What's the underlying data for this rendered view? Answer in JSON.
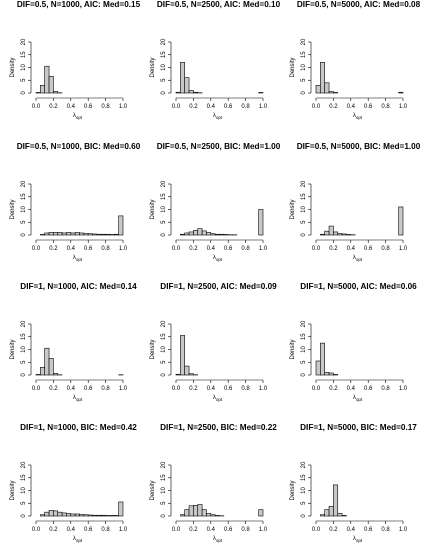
{
  "figure": {
    "ylabel": "Density",
    "xlabel_main": "λ",
    "xlabel_sub": "opt",
    "xticks": [
      "0.0",
      "0.2",
      "0.4",
      "0.6",
      "0.8",
      "1.0"
    ],
    "yticks": [
      "0",
      "5",
      "10",
      "15",
      "20"
    ]
  },
  "chart_data": [
    {
      "type": "bar",
      "title": "DIF=0.5, N=1000, AIC: Med=0.15",
      "xlabel": "λopt",
      "ylabel": "Density",
      "xlim": [
        0,
        1
      ],
      "ylim": [
        0,
        20
      ],
      "bin_width": 0.05,
      "bin_starts": [
        0.0,
        0.05,
        0.1,
        0.15,
        0.2,
        0.25,
        0.3,
        0.35,
        0.4,
        0.45,
        0.5,
        0.55,
        0.6,
        0.65,
        0.7,
        0.75,
        0.8,
        0.85,
        0.9,
        0.95
      ],
      "values": [
        0.2,
        3.0,
        10.5,
        6.5,
        0.6,
        0.1,
        0,
        0,
        0,
        0,
        0,
        0,
        0,
        0,
        0,
        0,
        0,
        0,
        0,
        0
      ]
    },
    {
      "type": "bar",
      "title": "DIF=0.5, N=2500, AIC: Med=0.10",
      "xlabel": "λopt",
      "ylabel": "Density",
      "xlim": [
        0,
        1
      ],
      "ylim": [
        0,
        20
      ],
      "bin_width": 0.05,
      "bin_starts": [
        0.0,
        0.05,
        0.1,
        0.15,
        0.2,
        0.25,
        0.3,
        0.35,
        0.4,
        0.45,
        0.5,
        0.55,
        0.6,
        0.65,
        0.7,
        0.75,
        0.8,
        0.85,
        0.9,
        0.95
      ],
      "values": [
        0.3,
        12.0,
        6.0,
        1.0,
        0.3,
        0.1,
        0,
        0,
        0,
        0,
        0,
        0,
        0,
        0,
        0,
        0,
        0,
        0,
        0,
        0.2
      ]
    },
    {
      "type": "bar",
      "title": "DIF=0.5, N=5000, AIC: Med=0.08",
      "xlabel": "λopt",
      "ylabel": "Density",
      "xlim": [
        0,
        1
      ],
      "ylim": [
        0,
        20
      ],
      "bin_width": 0.05,
      "bin_starts": [
        0.0,
        0.05,
        0.1,
        0.15,
        0.2,
        0.25,
        0.3,
        0.35,
        0.4,
        0.45,
        0.5,
        0.55,
        0.6,
        0.65,
        0.7,
        0.75,
        0.8,
        0.85,
        0.9,
        0.95
      ],
      "values": [
        3.0,
        12.0,
        4.0,
        0.6,
        0.2,
        0,
        0,
        0,
        0,
        0,
        0,
        0,
        0,
        0,
        0,
        0,
        0,
        0,
        0,
        0.3
      ]
    },
    {
      "type": "bar",
      "title": "DIF=0.5, N=1000, BIC: Med=0.60",
      "xlabel": "λopt",
      "ylabel": "Density",
      "xlim": [
        0,
        1
      ],
      "ylim": [
        0,
        20
      ],
      "bin_width": 0.05,
      "bin_starts": [
        0.0,
        0.05,
        0.1,
        0.15,
        0.2,
        0.25,
        0.3,
        0.35,
        0.4,
        0.45,
        0.5,
        0.55,
        0.6,
        0.65,
        0.7,
        0.75,
        0.8,
        0.85,
        0.9,
        0.95
      ],
      "values": [
        0,
        0.2,
        0.8,
        1.0,
        1.0,
        1.0,
        0.8,
        1.0,
        0.8,
        1.0,
        0.8,
        0.6,
        0.5,
        0.4,
        0.3,
        0.3,
        0.3,
        0.2,
        0.3,
        7.5
      ]
    },
    {
      "type": "bar",
      "title": "DIF=0.5, N=2500, BIC: Med=1.00",
      "xlabel": "λopt",
      "ylabel": "Density",
      "xlim": [
        0,
        1
      ],
      "ylim": [
        0,
        20
      ],
      "bin_width": 0.05,
      "bin_starts": [
        0.0,
        0.05,
        0.1,
        0.15,
        0.2,
        0.25,
        0.3,
        0.35,
        0.4,
        0.45,
        0.5,
        0.55,
        0.6,
        0.65,
        0.7,
        0.75,
        0.8,
        0.85,
        0.9,
        0.95
      ],
      "values": [
        0,
        0.3,
        0.8,
        1.2,
        1.8,
        2.5,
        1.6,
        1.0,
        0.5,
        0.3,
        0.3,
        0.2,
        0.1,
        0.1,
        0,
        0,
        0,
        0,
        0,
        10.0
      ]
    },
    {
      "type": "bar",
      "title": "DIF=0.5, N=5000, BIC: Med=1.00",
      "xlabel": "λopt",
      "ylabel": "Density",
      "xlim": [
        0,
        1
      ],
      "ylim": [
        0,
        20
      ],
      "bin_width": 0.05,
      "bin_starts": [
        0.0,
        0.05,
        0.1,
        0.15,
        0.2,
        0.25,
        0.3,
        0.35,
        0.4,
        0.45,
        0.5,
        0.55,
        0.6,
        0.65,
        0.7,
        0.75,
        0.8,
        0.85,
        0.9,
        0.95
      ],
      "values": [
        0,
        0.3,
        1.5,
        3.5,
        1.2,
        0.6,
        0.4,
        0.2,
        0.1,
        0,
        0,
        0,
        0,
        0,
        0,
        0,
        0,
        0,
        0,
        11.0
      ]
    },
    {
      "type": "bar",
      "title": "DIF=1, N=1000, AIC: Med=0.14",
      "xlabel": "λopt",
      "ylabel": "Density",
      "xlim": [
        0,
        1
      ],
      "ylim": [
        0,
        20
      ],
      "bin_width": 0.05,
      "bin_starts": [
        0.0,
        0.05,
        0.1,
        0.15,
        0.2,
        0.25,
        0.3,
        0.35,
        0.4,
        0.45,
        0.5,
        0.55,
        0.6,
        0.65,
        0.7,
        0.75,
        0.8,
        0.85,
        0.9,
        0.95
      ],
      "values": [
        0.2,
        3.0,
        10.5,
        6.5,
        0.6,
        0.1,
        0,
        0,
        0,
        0,
        0,
        0,
        0,
        0,
        0,
        0,
        0,
        0,
        0,
        0.1
      ]
    },
    {
      "type": "bar",
      "title": "DIF=1, N=2500, AIC: Med=0.09",
      "xlabel": "λopt",
      "ylabel": "Density",
      "xlim": [
        0,
        1
      ],
      "ylim": [
        0,
        20
      ],
      "bin_width": 0.05,
      "bin_starts": [
        0.0,
        0.05,
        0.1,
        0.15,
        0.2,
        0.25,
        0.3,
        0.35,
        0.4,
        0.45,
        0.5,
        0.55,
        0.6,
        0.65,
        0.7,
        0.75,
        0.8,
        0.85,
        0.9,
        0.95
      ],
      "values": [
        0.3,
        15.5,
        3.5,
        0.5,
        0.1,
        0,
        0,
        0,
        0,
        0,
        0,
        0,
        0,
        0,
        0,
        0,
        0,
        0,
        0,
        0
      ]
    },
    {
      "type": "bar",
      "title": "DIF=1, N=5000, AIC: Med=0.06",
      "xlabel": "λopt",
      "ylabel": "Density",
      "xlim": [
        0,
        1
      ],
      "ylim": [
        0,
        20
      ],
      "bin_width": 0.05,
      "bin_starts": [
        0.0,
        0.05,
        0.1,
        0.15,
        0.2,
        0.25,
        0.3,
        0.35,
        0.4,
        0.45,
        0.5,
        0.55,
        0.6,
        0.65,
        0.7,
        0.75,
        0.8,
        0.85,
        0.9,
        0.95
      ],
      "values": [
        5.5,
        12.5,
        1.0,
        0.8,
        0.2,
        0,
        0,
        0,
        0,
        0,
        0,
        0,
        0,
        0,
        0,
        0,
        0,
        0,
        0,
        0
      ]
    },
    {
      "type": "bar",
      "title": "DIF=1, N=1000, BIC: Med=0.42",
      "xlabel": "λopt",
      "ylabel": "Density",
      "xlim": [
        0,
        1
      ],
      "ylim": [
        0,
        20
      ],
      "bin_width": 0.05,
      "bin_starts": [
        0.0,
        0.05,
        0.1,
        0.15,
        0.2,
        0.25,
        0.3,
        0.35,
        0.4,
        0.45,
        0.5,
        0.55,
        0.6,
        0.65,
        0.7,
        0.75,
        0.8,
        0.85,
        0.9,
        0.95
      ],
      "values": [
        0,
        0.5,
        1.5,
        2.2,
        2.0,
        1.5,
        1.2,
        1.0,
        0.8,
        0.8,
        0.6,
        0.5,
        0.4,
        0.3,
        0.3,
        0.3,
        0.2,
        0.2,
        0.2,
        5.5
      ]
    },
    {
      "type": "bar",
      "title": "DIF=1, N=2500, BIC: Med=0.22",
      "xlabel": "λopt",
      "ylabel": "Density",
      "xlim": [
        0,
        1
      ],
      "ylim": [
        0,
        20
      ],
      "bin_width": 0.05,
      "bin_starts": [
        0.0,
        0.05,
        0.1,
        0.15,
        0.2,
        0.25,
        0.3,
        0.35,
        0.4,
        0.45,
        0.5,
        0.55,
        0.6,
        0.65,
        0.7,
        0.75,
        0.8,
        0.85,
        0.9,
        0.95
      ],
      "values": [
        0,
        0.5,
        2.5,
        4.0,
        4.2,
        4.5,
        2.5,
        1.0,
        0.5,
        0.2,
        0.1,
        0,
        0,
        0,
        0,
        0,
        0,
        0,
        0,
        2.5
      ]
    },
    {
      "type": "bar",
      "title": "DIF=1, N=5000, BIC: Med=0.17",
      "xlabel": "λopt",
      "ylabel": "Density",
      "xlim": [
        0,
        1
      ],
      "ylim": [
        0,
        20
      ],
      "bin_width": 0.05,
      "bin_starts": [
        0.0,
        0.05,
        0.1,
        0.15,
        0.2,
        0.25,
        0.3,
        0.35,
        0.4,
        0.45,
        0.5,
        0.55,
        0.6,
        0.65,
        0.7,
        0.75,
        0.8,
        0.85,
        0.9,
        0.95
      ],
      "values": [
        0,
        0.5,
        2.5,
        3.8,
        12.2,
        1.0,
        0.2,
        0,
        0,
        0,
        0,
        0,
        0,
        0,
        0,
        0,
        0,
        0,
        0,
        0
      ]
    }
  ]
}
